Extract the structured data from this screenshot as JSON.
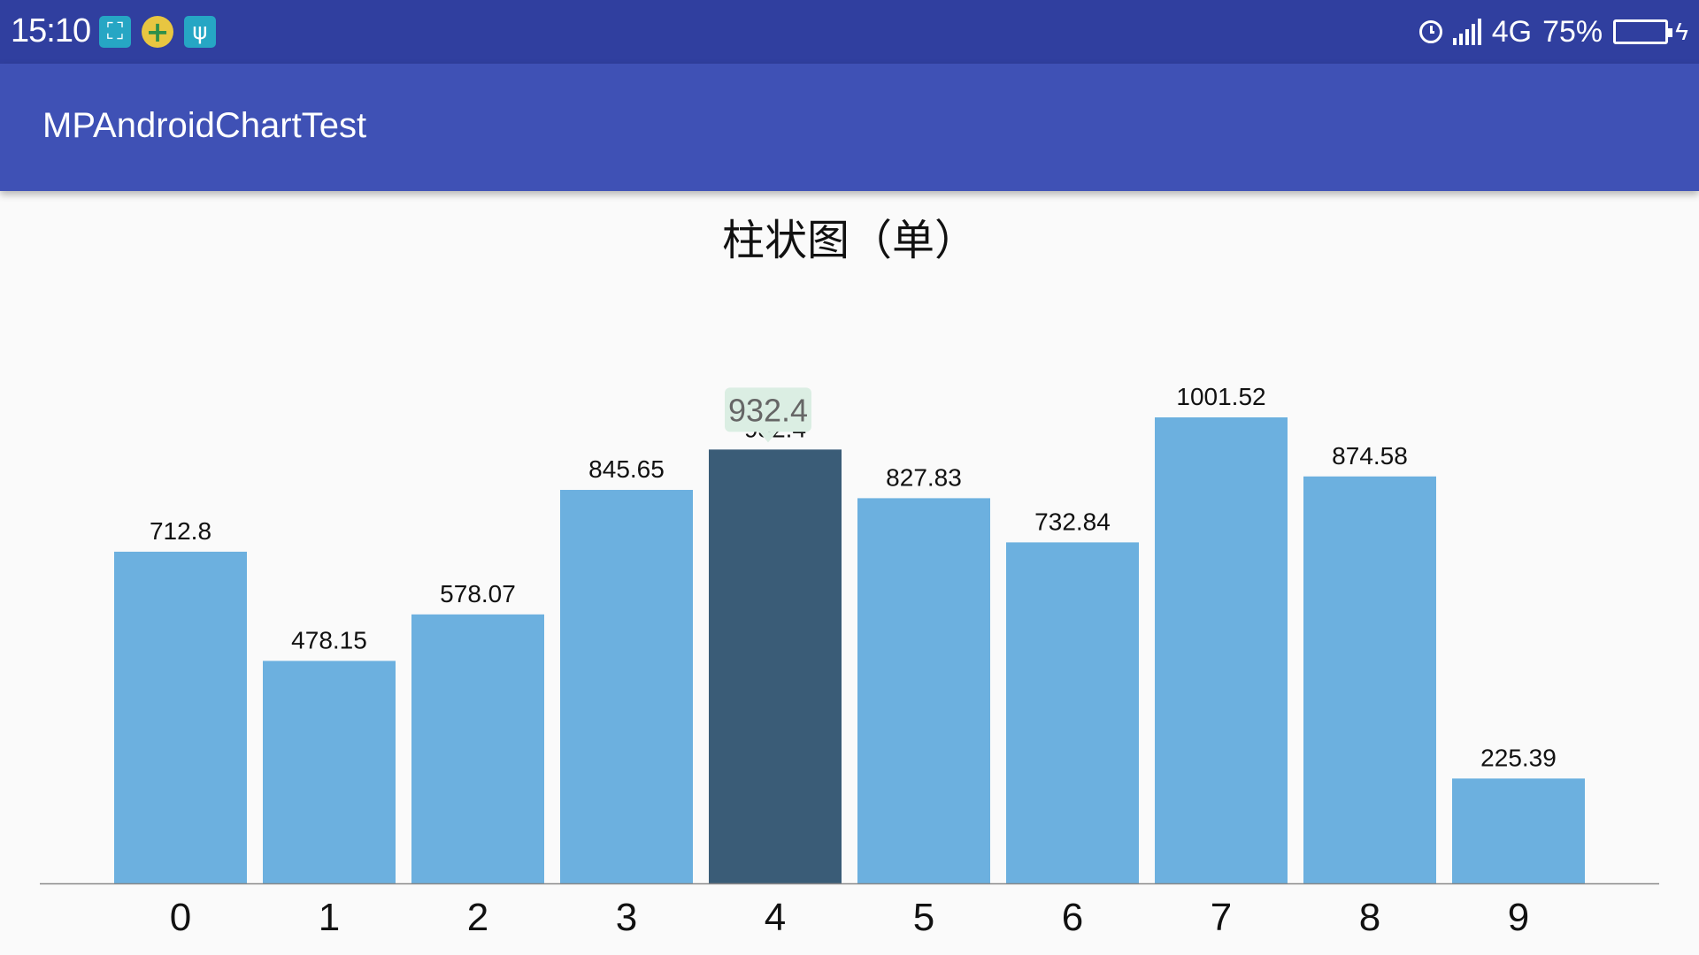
{
  "status_bar": {
    "time": "15:10",
    "left_icons": [
      "screenshot-icon",
      "app-notification-icon",
      "usb-icon"
    ],
    "network": "4G",
    "battery": "75%",
    "battery_level": 0.75
  },
  "app_bar": {
    "title": "MPAndroidChartTest",
    "color": "#3f51b5"
  },
  "chart_data": {
    "type": "bar",
    "title": "柱状图（单）",
    "categories": [
      "0",
      "1",
      "2",
      "3",
      "4",
      "5",
      "6",
      "7",
      "8",
      "9"
    ],
    "values": [
      712.8,
      478.15,
      578.07,
      845.65,
      932.4,
      827.83,
      732.84,
      1001.52,
      874.58,
      225.39
    ],
    "value_labels": [
      "712.8",
      "478.15",
      "578.07",
      "845.65",
      "932.4",
      "827.83",
      "732.84",
      "1001.52",
      "874.58",
      "225.39"
    ],
    "ylim": [
      0,
      1001.52
    ],
    "highlighted_index": 4,
    "marker_text": "932.4",
    "bar_color": "#6cb0df",
    "highlight_color": "#3a5c77",
    "marker_bg": "#dbeee3",
    "grid": false,
    "legend": "none"
  }
}
